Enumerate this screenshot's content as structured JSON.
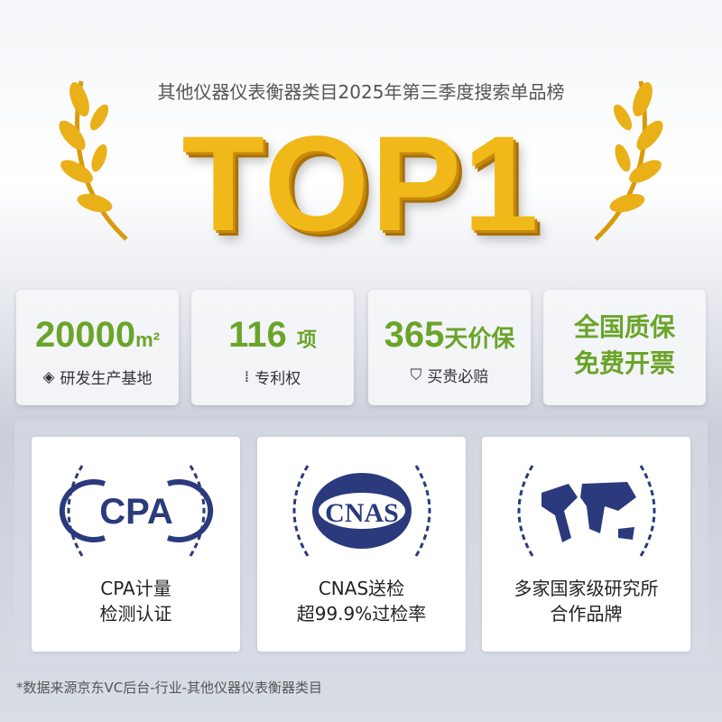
{
  "header": {
    "subtitle": "其他仪器仪表衡器类目2025年第三季度搜索单品榜",
    "rank": "TOP1"
  },
  "stats": [
    {
      "value": "20000",
      "unit": "m²",
      "icon": "factory-layers-icon",
      "label": "研发生产基地"
    },
    {
      "value": "116",
      "unit": "项",
      "icon": "patent-icon",
      "label": "专利权"
    },
    {
      "value": "365",
      "unit": "天价保",
      "icon": "price-protect-shield-icon",
      "label": "买贵必赔"
    },
    {
      "line1": "全国质保",
      "line2": "免费开票"
    }
  ],
  "certs": [
    {
      "logo": "CPA",
      "line1": "CPA计量",
      "line2": "检测认证"
    },
    {
      "logo": "CNAS",
      "line1": "CNAS送检",
      "line2": "超99.9%过检率"
    },
    {
      "logo": "world-map",
      "line1": "多家国家级研究所",
      "line2": "合作品牌"
    }
  ],
  "footnote": "*数据来源京东VC后台-行业-其他仪器仪表衡器类目",
  "colors": {
    "green": "#6aa52a",
    "gold": "#f1b81a",
    "navy": "#2b3a7c"
  }
}
